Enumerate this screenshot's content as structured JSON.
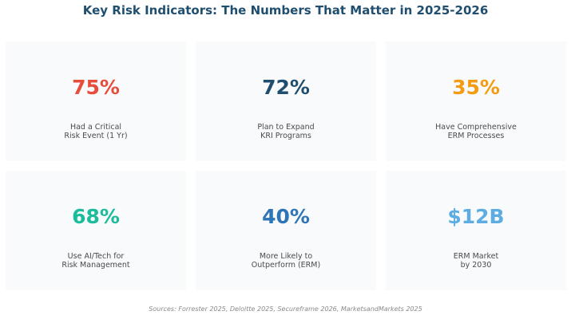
{
  "title": "Key Risk Indicators: The Numbers That Matter in 2025-2026",
  "chart_data": {
    "type": "table",
    "layout": "grid-3x2",
    "cards": [
      {
        "value": "75%",
        "label": "Had a Critical\nRisk Event (1 Yr)",
        "color": "#e74c3c"
      },
      {
        "value": "72%",
        "label": "Plan to Expand\nKRI Programs",
        "color": "#1f4e6e"
      },
      {
        "value": "35%",
        "label": "Have Comprehensive\nERM Processes",
        "color": "#f39c12"
      },
      {
        "value": "68%",
        "label": "Use AI/Tech for\nRisk Management",
        "color": "#1abc9c"
      },
      {
        "value": "40%",
        "label": "More Likely to\nOutperform (ERM)",
        "color": "#2e75b6"
      },
      {
        "value": "$12B",
        "label": "ERM Market\nby 2030",
        "color": "#5dade2"
      }
    ]
  },
  "sources": "Sources: Forrester 2025, Deloitte 2025, Secureframe 2026, MarketsandMarkets 2025"
}
